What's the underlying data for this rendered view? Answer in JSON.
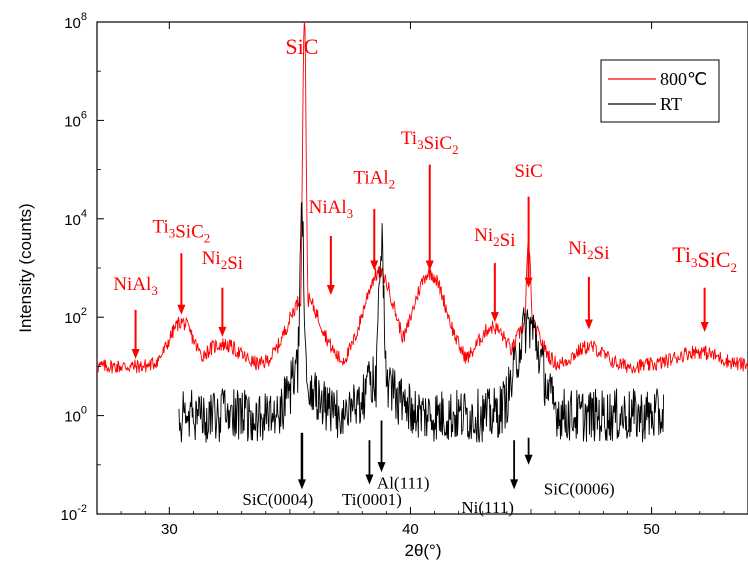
{
  "chart_data": {
    "type": "line",
    "xlabel": "2θ(°)",
    "ylabel": "Intensity (counts)",
    "xlim": [
      27,
      54
    ],
    "ylim_log10": [
      -2,
      8
    ],
    "y_scale": "log",
    "x_ticks": [
      "30",
      "40",
      "50"
    ],
    "y_ticks": [
      {
        "base": "10",
        "exp": "-2"
      },
      {
        "base": "10",
        "exp": "0"
      },
      {
        "base": "10",
        "exp": "2"
      },
      {
        "base": "10",
        "exp": "4"
      },
      {
        "base": "10",
        "exp": "6"
      },
      {
        "base": "10",
        "exp": "8"
      }
    ],
    "legend": {
      "placement": "top-right",
      "entries": [
        {
          "label": "800℃",
          "color": "#ff0000"
        },
        {
          "label": "RT",
          "color": "#000000"
        }
      ]
    },
    "series": [
      {
        "name": "800℃",
        "color": "#ff0000",
        "baseline_log10": 1.0,
        "noise": 0.15,
        "x_range": [
          27,
          54
        ],
        "peaks": [
          {
            "x": 30.5,
            "h": 0.9,
            "w": 0.5
          },
          {
            "x": 32.2,
            "h": 0.45,
            "w": 0.7
          },
          {
            "x": 35.6,
            "h": 7.1,
            "w": 0.08
          },
          {
            "x": 35.6,
            "h": 1.4,
            "w": 0.7
          },
          {
            "x": 38.7,
            "h": 1.9,
            "w": 0.65
          },
          {
            "x": 40.8,
            "h": 1.9,
            "w": 0.7
          },
          {
            "x": 43.4,
            "h": 0.8,
            "w": 0.6
          },
          {
            "x": 44.9,
            "h": 2.5,
            "w": 0.1
          },
          {
            "x": 44.9,
            "h": 0.9,
            "w": 0.5
          },
          {
            "x": 47.4,
            "h": 0.4,
            "w": 0.6
          },
          {
            "x": 51.9,
            "h": 0.3,
            "w": 0.9
          }
        ]
      },
      {
        "name": "RT",
        "color": "#000000",
        "baseline_log10": 0.0,
        "noise": 0.55,
        "x_range": [
          30.4,
          50.5
        ],
        "peaks": [
          {
            "x": 35.5,
            "h": 4.05,
            "w": 0.1
          },
          {
            "x": 35.5,
            "h": 0.9,
            "w": 0.5
          },
          {
            "x": 38.8,
            "h": 3.55,
            "w": 0.12
          },
          {
            "x": 38.7,
            "h": 0.7,
            "w": 0.7
          },
          {
            "x": 44.9,
            "h": 1.85,
            "w": 0.5
          }
        ]
      }
    ],
    "annotations_red": [
      {
        "id": "nial3-a",
        "parts": [
          [
            "NiAl",
            false
          ],
          [
            "3",
            true
          ]
        ],
        "x": 28.6,
        "text_log10": 2.55,
        "arrow_from": 2.15,
        "arrow_to": 1.15,
        "size": "normal"
      },
      {
        "id": "ti3sic2-a",
        "parts": [
          [
            "Ti",
            false
          ],
          [
            "3",
            true
          ],
          [
            "SiC",
            false
          ],
          [
            "2",
            true
          ]
        ],
        "x": 30.5,
        "text_log10": 3.72,
        "arrow_from": 3.3,
        "arrow_to": 2.05,
        "size": "normal"
      },
      {
        "id": "ni2si-a",
        "parts": [
          [
            "Ni",
            false
          ],
          [
            "2",
            true
          ],
          [
            "Si",
            false
          ]
        ],
        "x": 32.2,
        "text_log10": 3.08,
        "arrow_from": 2.6,
        "arrow_to": 1.6,
        "size": "normal"
      },
      {
        "id": "sic-a",
        "parts": [
          [
            "SiC",
            false
          ]
        ],
        "x": 35.5,
        "text_log10": 7.35,
        "arrow_from": null,
        "arrow_to": null,
        "size": "big"
      },
      {
        "id": "nial3-b",
        "parts": [
          [
            "NiAl",
            false
          ],
          [
            "3",
            true
          ]
        ],
        "x": 36.7,
        "text_log10": 4.12,
        "arrow_from": 3.65,
        "arrow_to": 2.45,
        "size": "normal"
      },
      {
        "id": "tial2",
        "parts": [
          [
            "TiAl",
            false
          ],
          [
            "2",
            true
          ]
        ],
        "x": 38.5,
        "text_log10": 4.72,
        "arrow_from": 4.2,
        "arrow_to": 2.95,
        "size": "normal"
      },
      {
        "id": "ti3sic2-b",
        "parts": [
          [
            "Ti",
            false
          ],
          [
            "3",
            true
          ],
          [
            "SiC",
            false
          ],
          [
            "2",
            true
          ]
        ],
        "x": 40.8,
        "text_log10": 5.52,
        "arrow_from": 5.1,
        "arrow_to": 2.95,
        "size": "normal"
      },
      {
        "id": "ni2si-b",
        "parts": [
          [
            "Ni",
            false
          ],
          [
            "2",
            true
          ],
          [
            "Si",
            false
          ]
        ],
        "x": 43.5,
        "text_log10": 3.55,
        "arrow_from": 3.1,
        "arrow_to": 1.9,
        "size": "normal"
      },
      {
        "id": "sic-b",
        "parts": [
          [
            "SiC",
            false
          ]
        ],
        "x": 44.9,
        "text_log10": 4.85,
        "arrow_from": 4.45,
        "arrow_to": 2.6,
        "size": "normal"
      },
      {
        "id": "ni2si-c",
        "parts": [
          [
            "Ni",
            false
          ],
          [
            "2",
            true
          ],
          [
            "Si",
            false
          ]
        ],
        "x": 47.4,
        "text_log10": 3.28,
        "arrow_from": 2.82,
        "arrow_to": 1.75,
        "size": "normal"
      },
      {
        "id": "ti3sic2-c",
        "parts": [
          [
            "Ti",
            false
          ],
          [
            "3",
            true
          ],
          [
            "SiC",
            false
          ],
          [
            "2",
            true
          ]
        ],
        "x": 52.2,
        "text_log10": 3.12,
        "arrow_from": 2.6,
        "arrow_to": 1.7,
        "size": "big"
      }
    ],
    "annotations_black": [
      {
        "id": "sic0004",
        "label": "SiC(0004)",
        "arrow_x": 35.5,
        "arrow_from": -0.35,
        "arrow_to": -1.5,
        "text_x": 34.5,
        "text_log10": -1.82
      },
      {
        "id": "ti0001",
        "label": "Ti(0001)",
        "arrow_x": 38.3,
        "arrow_from": -0.5,
        "arrow_to": -1.4,
        "text_x": 38.4,
        "text_log10": -1.82
      },
      {
        "id": "al111",
        "label": "Al(111)",
        "arrow_x": 38.8,
        "arrow_from": -0.1,
        "arrow_to": -1.15,
        "text_x": 39.7,
        "text_log10": -1.48
      },
      {
        "id": "ni111",
        "label": "Ni(111)",
        "arrow_x": 44.3,
        "arrow_from": -0.5,
        "arrow_to": -1.5,
        "text_x": 43.2,
        "text_log10": -1.98
      },
      {
        "id": "sic0006",
        "label": "SiC(0006)",
        "arrow_x": 44.9,
        "arrow_from": -0.45,
        "arrow_to": -1.0,
        "text_x": 47.0,
        "text_log10": -1.6
      }
    ]
  }
}
